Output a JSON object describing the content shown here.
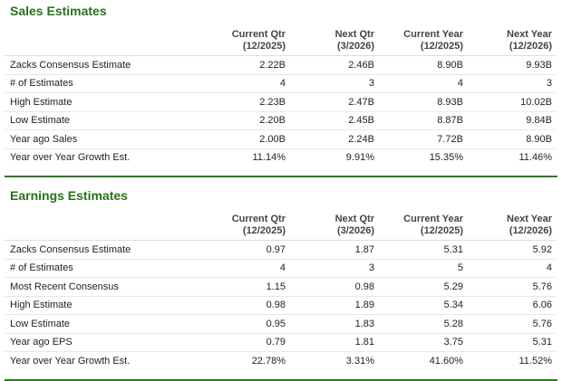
{
  "sections": [
    {
      "title": "Sales Estimates",
      "columns": [
        {
          "label": "Current Qtr",
          "period": "(12/2025)"
        },
        {
          "label": "Next Qtr",
          "period": "(3/2026)"
        },
        {
          "label": "Current Year",
          "period": "(12/2025)"
        },
        {
          "label": "Next Year",
          "period": "(12/2026)"
        }
      ],
      "rows": [
        {
          "label": "Zacks Consensus Estimate",
          "cells": [
            "2.22B",
            "2.46B",
            "8.90B",
            "9.93B"
          ]
        },
        {
          "label": "# of Estimates",
          "cells": [
            "4",
            "3",
            "4",
            "3"
          ]
        },
        {
          "label": "High Estimate",
          "cells": [
            "2.23B",
            "2.47B",
            "8.93B",
            "10.02B"
          ]
        },
        {
          "label": "Low Estimate",
          "cells": [
            "2.20B",
            "2.45B",
            "8.87B",
            "9.84B"
          ]
        },
        {
          "label": "Year ago Sales",
          "cells": [
            "2.00B",
            "2.24B",
            "7.72B",
            "8.90B"
          ]
        },
        {
          "label": "Year over Year Growth Est.",
          "cells": [
            "11.14%",
            "9.91%",
            "15.35%",
            "11.46%"
          ]
        }
      ]
    },
    {
      "title": "Earnings Estimates",
      "columns": [
        {
          "label": "Current Qtr",
          "period": "(12/2025)"
        },
        {
          "label": "Next Qtr",
          "period": "(3/2026)"
        },
        {
          "label": "Current Year",
          "period": "(12/2025)"
        },
        {
          "label": "Next Year",
          "period": "(12/2026)"
        }
      ],
      "rows": [
        {
          "label": "Zacks Consensus Estimate",
          "cells": [
            "0.97",
            "1.87",
            "5.31",
            "5.92"
          ]
        },
        {
          "label": "# of Estimates",
          "cells": [
            "4",
            "3",
            "5",
            "4"
          ]
        },
        {
          "label": "Most Recent Consensus",
          "cells": [
            "1.15",
            "0.98",
            "5.29",
            "5.76"
          ]
        },
        {
          "label": "High Estimate",
          "cells": [
            "0.98",
            "1.89",
            "5.34",
            "6.06"
          ]
        },
        {
          "label": "Low Estimate",
          "cells": [
            "0.95",
            "1.83",
            "5.28",
            "5.76"
          ]
        },
        {
          "label": "Year ago EPS",
          "cells": [
            "0.79",
            "1.81",
            "3.75",
            "5.31"
          ]
        },
        {
          "label": "Year over Year Growth Est.",
          "cells": [
            "22.78%",
            "3.31%",
            "41.60%",
            "11.52%"
          ]
        }
      ]
    }
  ]
}
